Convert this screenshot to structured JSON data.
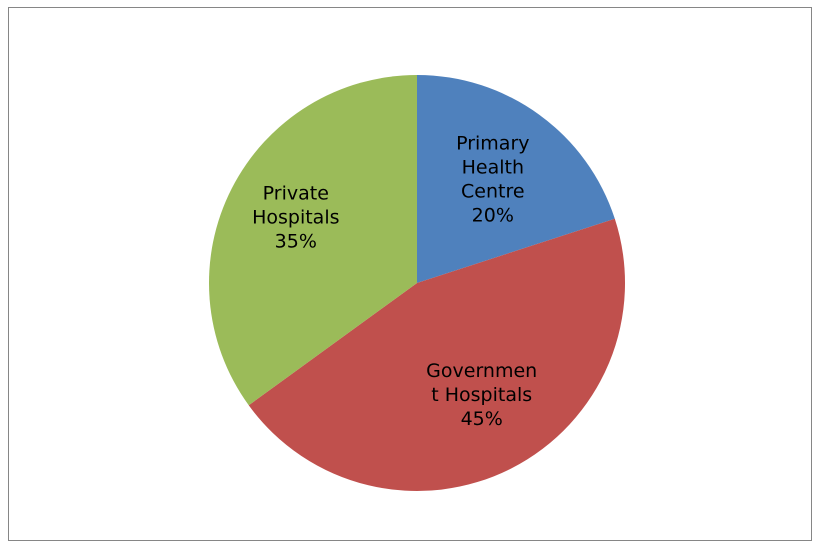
{
  "chart_data": {
    "type": "pie",
    "title": "",
    "slices": [
      {
        "name": "Primary Health Centre",
        "label_lines": [
          "Primary",
          "Health",
          "Centre"
        ],
        "value": 20,
        "value_label": "20%",
        "color": "#4F81BD"
      },
      {
        "name": "Government Hospitals",
        "label_lines": [
          "Governmen",
          "t Hospitals"
        ],
        "value": 45,
        "value_label": "45%",
        "color": "#C0504D"
      },
      {
        "name": "Private Hospitals",
        "label_lines": [
          "Private",
          "Hospitals"
        ],
        "value": 35,
        "value_label": "35%",
        "color": "#9BBB59"
      }
    ],
    "start_angle_deg": 0,
    "direction": "clockwise",
    "legend": "none",
    "data_labels": "inside"
  }
}
